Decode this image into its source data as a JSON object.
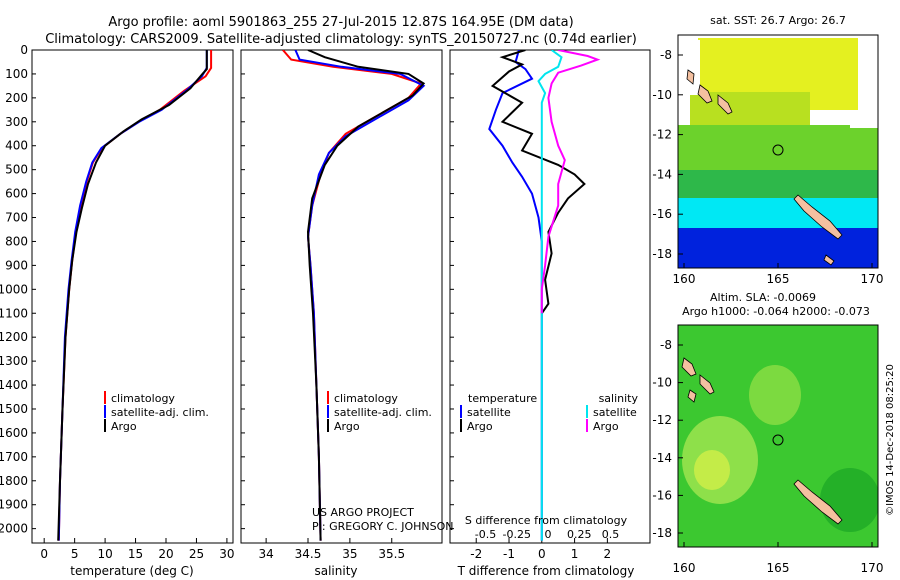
{
  "title_line1": "Argo profile: aoml 5901863_255 27-Jul-2015 12.87S 164.95E (DM data)",
  "title_line2": "Climatology: CARS2009. Satellite-adjusted climatology: synTS_20150727.nc (0.74d earlier)",
  "credit_line1": "US ARGO PROJECT",
  "credit_line2": "PI: GREGORY C. JOHNSON",
  "watermark": "©IMOS 14-Dec-2018 08:25:20",
  "colors": {
    "climatology": "#ff0000",
    "satellite": "#0000ff",
    "argo": "#000000",
    "sat_salinity": "#00e5ee",
    "argo_salinity": "#ff00ff"
  },
  "panels": {
    "temperature": {
      "xlabel": "temperature (deg C)",
      "xticks": [
        "0",
        "5",
        "10",
        "15",
        "20",
        "25",
        "30"
      ],
      "legend": [
        "climatology",
        "satellite-adj. clim.",
        "Argo"
      ]
    },
    "salinity": {
      "xlabel": "salinity",
      "xticks": [
        "34",
        "34.5",
        "35",
        "35.5"
      ],
      "legend": [
        "climatology",
        "satellite-adj. clim.",
        "Argo"
      ]
    },
    "difference": {
      "xlabel": "T difference from climatology",
      "xlabel_s": "S difference from climatology",
      "xticks_t": [
        "-2",
        "-1",
        "0",
        "1",
        "2"
      ],
      "xticks_s": [
        "-0.5",
        "-0.25",
        "0",
        "0.25",
        "0.5"
      ],
      "legend_temp_title": "temperature",
      "legend_sal_title": "salinity",
      "legend_temp": [
        "satellite",
        "Argo"
      ],
      "legend_sal": [
        "satellite",
        "Argo"
      ]
    }
  },
  "yticks": [
    "0",
    "100",
    "200",
    "300",
    "400",
    "500",
    "600",
    "700",
    "800",
    "900",
    "1000",
    "1100",
    "1200",
    "1300",
    "1400",
    "1500",
    "1600",
    "1700",
    "1800",
    "1900",
    "2000"
  ],
  "maps": {
    "sst": {
      "title": "sat. SST: 26.7 Argo: 26.7",
      "yticks": [
        "-8",
        "-10",
        "-12",
        "-14",
        "-16",
        "-18"
      ],
      "xticks": [
        "160",
        "165",
        "170"
      ]
    },
    "sla": {
      "title1": "Altim. SLA: -0.0069",
      "title2": "Argo h1000: -0.064 h2000: -0.073",
      "yticks": [
        "-8",
        "-10",
        "-12",
        "-14",
        "-16",
        "-18"
      ],
      "xticks": [
        "160",
        "165",
        "170"
      ]
    }
  },
  "chart_data": [
    {
      "type": "line",
      "title": "",
      "xlabel": "temperature (deg C)",
      "ylabel": "",
      "xlim": [
        -2,
        31
      ],
      "ylim": [
        2060,
        0
      ],
      "series": [
        {
          "name": "climatology",
          "color": "#ff0000",
          "points": [
            [
              27.4,
              0
            ],
            [
              27.4,
              75
            ],
            [
              26.5,
              110
            ],
            [
              23,
              170
            ],
            [
              19,
              250
            ],
            [
              15.5,
              300
            ],
            [
              12.5,
              350
            ],
            [
              9.5,
              410
            ],
            [
              8,
              470
            ],
            [
              7,
              550
            ],
            [
              6,
              650
            ],
            [
              5.2,
              760
            ],
            [
              4.6,
              880
            ],
            [
              4.1,
              1000
            ],
            [
              3.5,
              1200
            ],
            [
              3.0,
              1500
            ],
            [
              2.6,
              1800
            ],
            [
              2.4,
              2050
            ]
          ]
        },
        {
          "name": "satellite-adj. clim.",
          "color": "#0000ff",
          "points": [
            [
              26.7,
              0
            ],
            [
              26.7,
              75
            ],
            [
              25.9,
              110
            ],
            [
              23.3,
              170
            ],
            [
              19.3,
              250
            ],
            [
              15.6,
              300
            ],
            [
              12.5,
              350
            ],
            [
              9.4,
              410
            ],
            [
              7.9,
              470
            ],
            [
              6.9,
              550
            ],
            [
              5.9,
              650
            ],
            [
              5.1,
              760
            ],
            [
              4.5,
              880
            ],
            [
              4.0,
              1000
            ],
            [
              3.4,
              1200
            ],
            [
              3.0,
              1500
            ],
            [
              2.6,
              1800
            ],
            [
              2.4,
              2050
            ]
          ]
        },
        {
          "name": "Argo",
          "color": "#000000",
          "points": [
            [
              26.7,
              0
            ],
            [
              26.7,
              80
            ],
            [
              26.0,
              100
            ],
            [
              24.0,
              160
            ],
            [
              20.5,
              230
            ],
            [
              16,
              290
            ],
            [
              13,
              340
            ],
            [
              10,
              400
            ],
            [
              8.5,
              470
            ],
            [
              7.2,
              560
            ],
            [
              6.2,
              660
            ],
            [
              5.3,
              760
            ],
            [
              4.6,
              880
            ],
            [
              4.1,
              1000
            ],
            [
              3.5,
              1200
            ],
            [
              3.0,
              1500
            ],
            [
              2.6,
              1800
            ],
            [
              2.3,
              2050
            ]
          ]
        }
      ]
    },
    {
      "type": "line",
      "title": "",
      "xlabel": "salinity",
      "ylabel": "",
      "xlim": [
        33.7,
        36.1
      ],
      "ylim": [
        2060,
        0
      ],
      "series": [
        {
          "name": "climatology",
          "color": "#ff0000",
          "points": [
            [
              34.2,
              0
            ],
            [
              34.3,
              40
            ],
            [
              34.8,
              70
            ],
            [
              35.5,
              100
            ],
            [
              35.85,
              140
            ],
            [
              35.7,
              200
            ],
            [
              35.3,
              280
            ],
            [
              34.95,
              350
            ],
            [
              34.75,
              430
            ],
            [
              34.65,
              520
            ],
            [
              34.55,
              650
            ],
            [
              34.5,
              780
            ],
            [
              34.53,
              900
            ],
            [
              34.57,
              1100
            ],
            [
              34.6,
              1400
            ],
            [
              34.63,
              1700
            ],
            [
              34.65,
              2050
            ]
          ]
        },
        {
          "name": "satellite-adj. clim.",
          "color": "#0000ff",
          "points": [
            [
              34.35,
              0
            ],
            [
              34.4,
              40
            ],
            [
              34.9,
              70
            ],
            [
              35.6,
              100
            ],
            [
              35.88,
              150
            ],
            [
              35.7,
              210
            ],
            [
              35.3,
              290
            ],
            [
              34.95,
              360
            ],
            [
              34.75,
              430
            ],
            [
              34.63,
              520
            ],
            [
              34.55,
              650
            ],
            [
              34.5,
              780
            ],
            [
              34.53,
              900
            ],
            [
              34.57,
              1100
            ],
            [
              34.6,
              1400
            ],
            [
              34.63,
              1700
            ],
            [
              34.65,
              2050
            ]
          ]
        },
        {
          "name": "Argo",
          "color": "#000000",
          "points": [
            [
              34.5,
              0
            ],
            [
              34.7,
              30
            ],
            [
              35.1,
              70
            ],
            [
              35.7,
              100
            ],
            [
              35.88,
              140
            ],
            [
              35.75,
              190
            ],
            [
              35.45,
              250
            ],
            [
              35.1,
              320
            ],
            [
              34.85,
              400
            ],
            [
              34.7,
              480
            ],
            [
              34.55,
              620
            ],
            [
              34.5,
              760
            ],
            [
              34.52,
              900
            ],
            [
              34.56,
              1100
            ],
            [
              34.6,
              1400
            ],
            [
              34.63,
              1700
            ],
            [
              34.65,
              2050
            ]
          ]
        }
      ]
    },
    {
      "type": "line",
      "title": "",
      "xlabel": "T difference from climatology",
      "ylabel": "",
      "xlim": [
        -2.8,
        3.3
      ],
      "ylim": [
        2060,
        0
      ],
      "series": [
        {
          "name": "satellite",
          "color": "#0000ff",
          "points": [
            [
              -0.7,
              0
            ],
            [
              -0.8,
              50
            ],
            [
              -0.5,
              80
            ],
            [
              -0.3,
              120
            ],
            [
              -1.2,
              180
            ],
            [
              -1.4,
              250
            ],
            [
              -1.6,
              330
            ],
            [
              -1.2,
              400
            ],
            [
              -0.9,
              470
            ],
            [
              -0.6,
              530
            ],
            [
              -0.3,
              600
            ],
            [
              -0.1,
              700
            ],
            [
              0,
              800
            ],
            [
              0,
              1000
            ],
            [
              0,
              2050
            ]
          ]
        },
        {
          "name": "Argo",
          "color": "#000000",
          "points": [
            [
              -0.5,
              0
            ],
            [
              -1.2,
              30
            ],
            [
              -0.6,
              60
            ],
            [
              -1.0,
              90
            ],
            [
              -1.5,
              150
            ],
            [
              -0.6,
              220
            ],
            [
              -1.2,
              300
            ],
            [
              -0.3,
              350
            ],
            [
              -0.6,
              420
            ],
            [
              0.5,
              480
            ],
            [
              1.0,
              520
            ],
            [
              1.3,
              560
            ],
            [
              0.8,
              620
            ],
            [
              0.5,
              680
            ],
            [
              0.2,
              760
            ],
            [
              0.3,
              850
            ],
            [
              0.1,
              960
            ],
            [
              0.2,
              1060
            ],
            [
              0,
              1100
            ]
          ]
        },
        {
          "name": "satellite (S)",
          "color": "#00e5ee",
          "points": [
            [
              0.3,
              0
            ],
            [
              0.6,
              30
            ],
            [
              0.5,
              70
            ],
            [
              0.1,
              100
            ],
            [
              -0.1,
              130
            ],
            [
              0.1,
              180
            ],
            [
              0,
              220
            ],
            [
              0,
              2050
            ]
          ]
        },
        {
          "name": "Argo (S)",
          "color": "#ff00ff",
          "points": [
            [
              0.5,
              0
            ],
            [
              1.4,
              25
            ],
            [
              1.7,
              40
            ],
            [
              1.2,
              65
            ],
            [
              0.5,
              95
            ],
            [
              0.3,
              140
            ],
            [
              0.2,
              200
            ],
            [
              0.3,
              300
            ],
            [
              0.5,
              400
            ],
            [
              0.7,
              460
            ],
            [
              0.5,
              560
            ],
            [
              0.5,
              650
            ],
            [
              0.2,
              780
            ],
            [
              0.1,
              900
            ],
            [
              0,
              1000
            ],
            [
              0,
              1100
            ]
          ]
        }
      ]
    }
  ]
}
